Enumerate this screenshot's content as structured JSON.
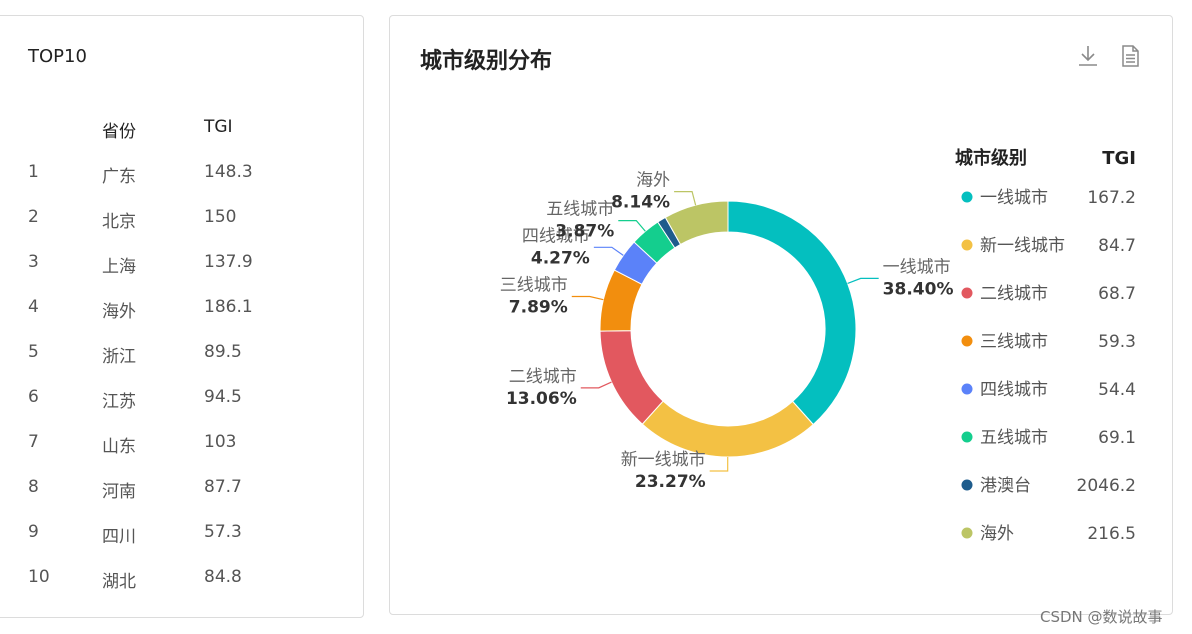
{
  "top10": {
    "title": "TOP10",
    "headers": [
      "省份",
      "TGI"
    ],
    "rows": [
      {
        "rank": "1",
        "province": "广东",
        "tgi": "148.3"
      },
      {
        "rank": "2",
        "province": "北京",
        "tgi": "150"
      },
      {
        "rank": "3",
        "province": "上海",
        "tgi": "137.9"
      },
      {
        "rank": "4",
        "province": "海外",
        "tgi": "186.1"
      },
      {
        "rank": "5",
        "province": "浙江",
        "tgi": "89.5"
      },
      {
        "rank": "6",
        "province": "江苏",
        "tgi": "94.5"
      },
      {
        "rank": "7",
        "province": "山东",
        "tgi": "103"
      },
      {
        "rank": "8",
        "province": "河南",
        "tgi": "87.7"
      },
      {
        "rank": "9",
        "province": "四川",
        "tgi": "57.3"
      },
      {
        "rank": "10",
        "province": "湖北",
        "tgi": "84.8"
      }
    ]
  },
  "chart_panel": {
    "title": "城市级别分布",
    "icons": [
      "download-icon",
      "document-icon"
    ]
  },
  "chart_data": {
    "type": "pie",
    "variant": "donut",
    "legend_position": "right",
    "legend_headers": [
      "城市级别",
      "TGI"
    ],
    "slices": [
      {
        "name": "一线城市",
        "percent": 38.4,
        "label": "38.40%",
        "tgi": "167.2",
        "color": "#04BFBF"
      },
      {
        "name": "新一线城市",
        "percent": 23.27,
        "label": "23.27%",
        "tgi": "84.7",
        "color": "#F3C144"
      },
      {
        "name": "二线城市",
        "percent": 13.06,
        "label": "13.06%",
        "tgi": "68.7",
        "color": "#E2585F"
      },
      {
        "name": "三线城市",
        "percent": 7.89,
        "label": "7.89%",
        "tgi": "59.3",
        "color": "#F28E0E"
      },
      {
        "name": "四线城市",
        "percent": 4.27,
        "label": "4.27%",
        "tgi": "54.4",
        "color": "#5B82F9"
      },
      {
        "name": "五线城市",
        "percent": 3.87,
        "label": "3.87%",
        "tgi": "69.1",
        "color": "#14CE8E"
      },
      {
        "name": "港澳台",
        "percent": 1.1,
        "label": "",
        "tgi": "2046.2",
        "color": "#1E5C8C"
      },
      {
        "name": "海外",
        "percent": 8.14,
        "label": "8.14%",
        "tgi": "216.5",
        "color": "#BCC565"
      }
    ]
  },
  "watermark": "CSDN @数说故事"
}
